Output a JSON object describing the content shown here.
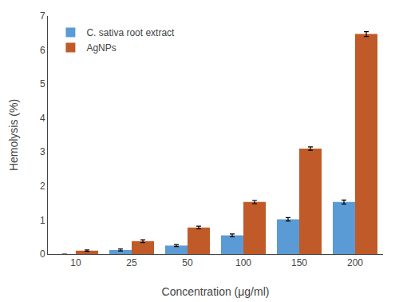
{
  "chart_data": {
    "type": "bar",
    "xlabel": "Concentration (μg/ml)",
    "ylabel": "Hemolysis (%)",
    "categories": [
      "10",
      "25",
      "50",
      "100",
      "150",
      "200"
    ],
    "series": [
      {
        "name": "C. sativa root extract",
        "color": "#5B9BD5",
        "values": [
          0.0,
          0.12,
          0.25,
          0.55,
          1.02,
          1.53
        ],
        "errors": [
          0.0,
          0.03,
          0.03,
          0.04,
          0.05,
          0.06
        ]
      },
      {
        "name": "AgNPs",
        "color": "#C05A28",
        "values": [
          0.1,
          0.38,
          0.78,
          1.53,
          3.1,
          6.47
        ],
        "errors": [
          0.02,
          0.04,
          0.04,
          0.05,
          0.05,
          0.07
        ]
      }
    ],
    "ylim": [
      0,
      7
    ],
    "yticks": [
      0,
      1,
      2,
      3,
      4,
      5,
      6,
      7
    ],
    "grid": false,
    "legend": "upper left"
  }
}
